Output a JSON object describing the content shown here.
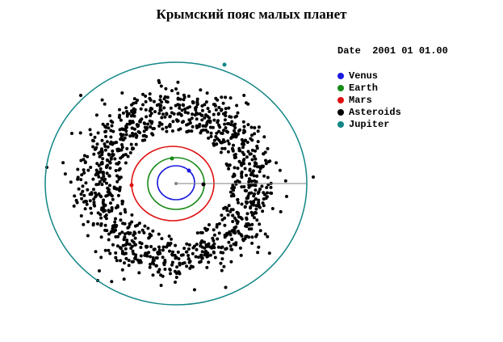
{
  "title": "Крымский пояс малых планет",
  "date_label": "Date",
  "date_value": "2001 01 01.00",
  "legend": [
    {
      "label": "Venus",
      "color": "#1a1adf",
      "icon": "blue-dot-icon"
    },
    {
      "label": "Earth",
      "color": "#178a17",
      "icon": "green-dot-icon"
    },
    {
      "label": "Mars",
      "color": "#e01010",
      "icon": "red-dot-icon"
    },
    {
      "label": "Asteroids",
      "color": "#000000",
      "icon": "black-dot-icon"
    },
    {
      "label": "Jupiter",
      "color": "#128686",
      "icon": "teal-dot-icon"
    }
  ],
  "colors": {
    "venus": "#1a1adf",
    "earth": "#178a17",
    "mars": "#e01010",
    "asteroids": "#000000",
    "jupiter": "#128686",
    "sun_marker": "#808080"
  }
}
